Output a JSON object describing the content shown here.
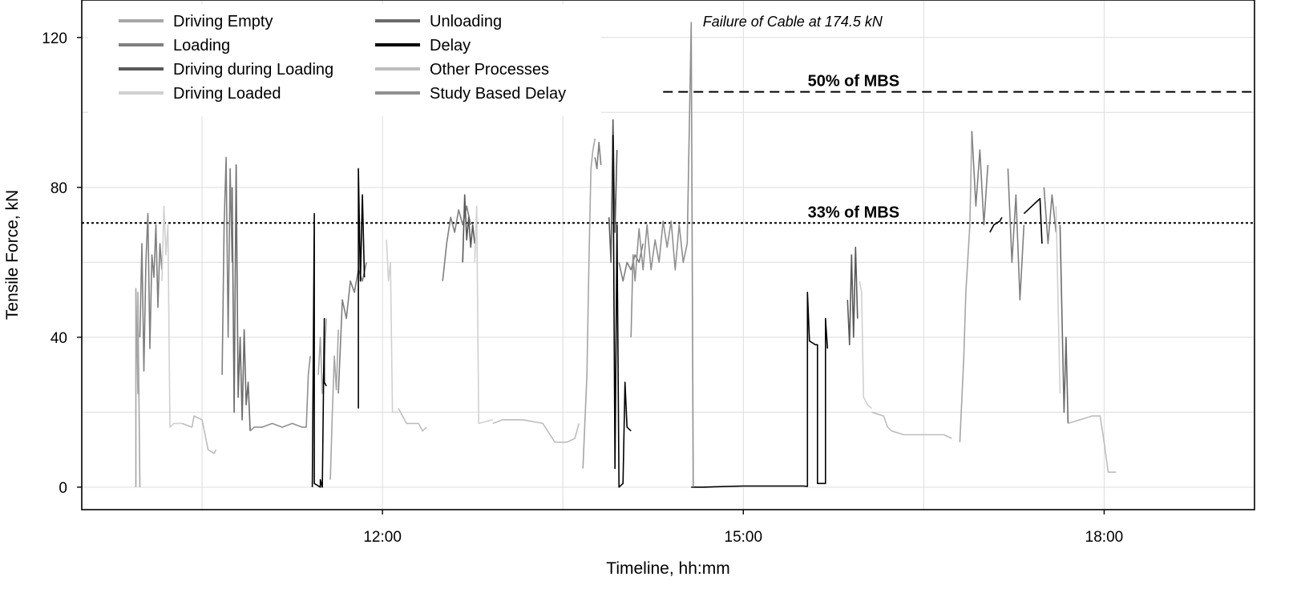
{
  "chart_data": {
    "type": "line",
    "title": "",
    "xlabel": "Timeline, hh:mm",
    "ylabel": "Tensile Force, kN",
    "x_unit": "hh:mm",
    "xlim": [
      "09:30",
      "19:15"
    ],
    "ylim": [
      -6,
      130
    ],
    "x_ticks": [
      "12:00",
      "15:00",
      "18:00"
    ],
    "y_ticks": [
      0,
      40,
      80,
      120
    ],
    "grid": true,
    "legend_position": "top-left",
    "legend": [
      {
        "name": "Driving Empty",
        "color": "#a6a6a6"
      },
      {
        "name": "Loading",
        "color": "#7f7f7f"
      },
      {
        "name": "Driving during Loading",
        "color": "#595959"
      },
      {
        "name": "Driving Loaded",
        "color": "#d0d0d0"
      },
      {
        "name": "Unloading",
        "color": "#6b6b6b"
      },
      {
        "name": "Delay",
        "color": "#000000"
      },
      {
        "name": "Other Processes",
        "color": "#bdbdbd"
      },
      {
        "name": "Study Based Delay",
        "color": "#909090"
      }
    ],
    "reference_lines": [
      {
        "y": 105.5,
        "label": "50% of MBS",
        "style": "dashed"
      },
      {
        "y": 70.5,
        "label": "33% of MBS",
        "style": "dotted"
      }
    ],
    "annotations": [
      {
        "x": "14:35",
        "y": 124,
        "text": "Failure of Cable at 174.5 kN"
      }
    ],
    "series": [
      {
        "name": "Driving Empty",
        "segments": [
          [
            [
              "09:57",
              0
            ],
            [
              "09:57",
              53
            ],
            [
              "09:58",
              25
            ],
            [
              "09:58",
              52
            ],
            [
              "09:59",
              0
            ]
          ],
          [
            [
              "11:28",
              30
            ],
            [
              "11:29",
              40
            ],
            [
              "11:30",
              25
            ],
            [
              "11:31",
              34
            ],
            [
              "11:32",
              45
            ]
          ],
          [
            [
              "11:34",
              2
            ],
            [
              "11:35",
              20
            ],
            [
              "11:36",
              35
            ],
            [
              "11:37",
              26
            ],
            [
              "11:38",
              42
            ]
          ],
          [
            [
              "13:40",
              5
            ],
            [
              "13:42",
              30
            ],
            [
              "13:43",
              60
            ],
            [
              "13:44",
              85
            ],
            [
              "13:45",
              90
            ],
            [
              "13:46",
              93
            ]
          ],
          [
            [
              "16:48",
              12
            ],
            [
              "16:50",
              35
            ],
            [
              "16:51",
              52
            ],
            [
              "16:53",
              70
            ],
            [
              "16:54",
              95
            ]
          ]
        ]
      },
      {
        "name": "Loading",
        "segments": [
          [
            [
              "09:59",
              40
            ],
            [
              "10:00",
              65
            ],
            [
              "10:01",
              31
            ],
            [
              "10:02",
              60
            ],
            [
              "10:03",
              73
            ],
            [
              "10:04",
              37
            ],
            [
              "10:05",
              62
            ],
            [
              "10:06",
              56
            ],
            [
              "10:07",
              70
            ],
            [
              "10:08",
              48
            ],
            [
              "10:09",
              65
            ],
            [
              "10:10",
              58
            ]
          ],
          [
            [
              "10:40",
              30
            ],
            [
              "10:41",
              70
            ],
            [
              "10:42",
              88
            ],
            [
              "10:43",
              40
            ],
            [
              "10:44",
              85
            ],
            [
              "10:45",
              60
            ]
          ],
          [
            [
              "11:38",
              25
            ],
            [
              "11:40",
              50
            ],
            [
              "11:42",
              45
            ],
            [
              "11:44",
              55
            ],
            [
              "11:46",
              52
            ],
            [
              "11:48",
              58
            ],
            [
              "11:50",
              55
            ],
            [
              "11:52",
              60
            ]
          ],
          [
            [
              "12:30",
              55
            ],
            [
              "12:32",
              65
            ],
            [
              "12:34",
              72
            ],
            [
              "12:36",
              68
            ],
            [
              "12:38",
              74
            ],
            [
              "12:40",
              70
            ],
            [
              "12:42",
              75
            ],
            [
              "12:44",
              70
            ]
          ],
          [
            [
              "13:46",
              88
            ],
            [
              "13:47",
              85
            ],
            [
              "13:48",
              92
            ],
            [
              "13:49",
              86
            ]
          ],
          [
            [
              "13:58",
              60
            ],
            [
              "14:00",
              55
            ],
            [
              "14:02",
              60
            ],
            [
              "14:04",
              58
            ],
            [
              "14:06",
              62
            ],
            [
              "14:08",
              60
            ],
            [
              "14:10",
              65
            ]
          ],
          [
            [
              "16:54",
              95
            ],
            [
              "16:56",
              75
            ],
            [
              "16:58",
              90
            ],
            [
              "17:00",
              70
            ],
            [
              "17:02",
              86
            ]
          ],
          [
            [
              "17:12",
              85
            ],
            [
              "17:14",
              60
            ],
            [
              "17:16",
              78
            ],
            [
              "17:18",
              50
            ],
            [
              "17:20",
              70
            ]
          ],
          [
            [
              "17:30",
              80
            ],
            [
              "17:32",
              65
            ],
            [
              "17:34",
              78
            ],
            [
              "17:36",
              68
            ]
          ]
        ]
      },
      {
        "name": "Driving during Loading",
        "segments": [
          [
            [
              "12:40",
              60
            ],
            [
              "12:41",
              78
            ],
            [
              "12:42",
              66
            ],
            [
              "12:43",
              72
            ],
            [
              "12:44",
              64
            ],
            [
              "12:45",
              70
            ],
            [
              "12:46",
              65
            ]
          ],
          [
            [
              "13:53",
              72
            ],
            [
              "13:54",
              60
            ],
            [
              "13:55",
              98
            ],
            [
              "13:56",
              68
            ],
            [
              "13:57",
              90
            ]
          ],
          [
            [
              "15:52",
              50
            ],
            [
              "15:53",
              38
            ],
            [
              "15:54",
              62
            ],
            [
              "15:55",
              40
            ],
            [
              "15:56",
              64
            ],
            [
              "15:57",
              45
            ]
          ]
        ]
      },
      {
        "name": "Driving Loaded",
        "segments": [
          [
            [
              "10:10",
              55
            ],
            [
              "10:11",
              75
            ],
            [
              "10:12",
              62
            ],
            [
              "10:13",
              70
            ],
            [
              "10:14",
              16
            ],
            [
              "10:16",
              17
            ],
            [
              "10:20",
              17
            ]
          ],
          [
            [
              "12:02",
              66
            ],
            [
              "12:03",
              55
            ],
            [
              "12:04",
              60
            ],
            [
              "12:05",
              20
            ],
            [
              "12:08",
              20
            ]
          ],
          [
            [
              "12:46",
              60
            ],
            [
              "12:47",
              75
            ],
            [
              "12:48",
              17
            ],
            [
              "12:55",
              18
            ]
          ],
          [
            [
              "15:58",
              55
            ],
            [
              "15:59",
              52
            ],
            [
              "16:00",
              24
            ],
            [
              "16:02",
              22
            ],
            [
              "16:04",
              21
            ]
          ],
          [
            [
              "17:36",
              75
            ],
            [
              "17:38",
              25
            ]
          ]
        ]
      },
      {
        "name": "Unloading",
        "segments": [
          [
            [
              "10:45",
              80
            ],
            [
              "10:46",
              20
            ],
            [
              "10:47",
              86
            ],
            [
              "10:48",
              24
            ],
            [
              "10:49",
              40
            ],
            [
              "10:50",
              18
            ],
            [
              "10:51",
              42
            ],
            [
              "10:52",
              22
            ],
            [
              "10:53",
              28
            ],
            [
              "10:54",
              15
            ]
          ],
          [
            [
              "17:38",
              70
            ],
            [
              "17:40",
              20
            ],
            [
              "17:41",
              40
            ],
            [
              "17:42",
              17
            ]
          ]
        ]
      },
      {
        "name": "Delay",
        "segments": [
          [
            [
              "11:25",
              0
            ],
            [
              "11:26",
              73
            ],
            [
              "11:26",
              1
            ],
            [
              "11:29",
              0
            ],
            [
              "11:29",
              2
            ],
            [
              "11:30",
              0
            ],
            [
              "11:31",
              45
            ],
            [
              "11:31",
              28
            ],
            [
              "11:32",
              27
            ]
          ],
          [
            [
              "11:48",
              21
            ],
            [
              "11:48",
              85
            ],
            [
              "11:49",
              55
            ],
            [
              "11:50",
              78
            ],
            [
              "11:51",
              56
            ]
          ],
          [
            [
              "13:55",
              94
            ],
            [
              "13:56",
              5
            ],
            [
              "13:57",
              70
            ],
            [
              "13:58",
              0
            ],
            [
              "14:00",
              1
            ],
            [
              "14:01",
              28
            ],
            [
              "14:02",
              16
            ],
            [
              "14:04",
              15
            ]
          ],
          [
            [
              "14:34",
              0
            ],
            [
              "14:40",
              0
            ],
            [
              "15:00",
              0.3
            ],
            [
              "15:30",
              0.3
            ],
            [
              "15:32",
              0.2
            ],
            [
              "15:32",
              52
            ],
            [
              "15:33",
              39
            ],
            [
              "15:36",
              38
            ],
            [
              "15:37",
              38
            ],
            [
              "15:37",
              1
            ],
            [
              "15:41",
              1
            ],
            [
              "15:41",
              45
            ],
            [
              "15:42",
              37
            ]
          ],
          [
            [
              "17:03",
              68
            ],
            [
              "17:05",
              70
            ],
            [
              "17:08",
              71
            ],
            [
              "17:09",
              72
            ]
          ],
          [
            [
              "17:20",
              73
            ],
            [
              "17:24",
              75
            ],
            [
              "17:26",
              76
            ],
            [
              "17:28",
              77
            ],
            [
              "17:29",
              65
            ]
          ]
        ]
      },
      {
        "name": "Other Processes",
        "segments": [
          [
            [
              "10:20",
              17
            ],
            [
              "10:25",
              16
            ],
            [
              "10:26",
              19
            ],
            [
              "10:30",
              18
            ],
            [
              "10:33",
              10
            ],
            [
              "10:36",
              9
            ],
            [
              "10:37",
              10
            ]
          ],
          [
            [
              "12:08",
              21
            ],
            [
              "12:12",
              17
            ],
            [
              "12:18",
              17
            ],
            [
              "12:20",
              15
            ],
            [
              "12:22",
              16
            ]
          ],
          [
            [
              "12:55",
              17
            ],
            [
              "13:00",
              18
            ],
            [
              "13:10",
              18
            ],
            [
              "13:20",
              17
            ],
            [
              "13:26",
              12
            ],
            [
              "13:32",
              12
            ],
            [
              "13:36",
              13
            ],
            [
              "13:38",
              17
            ]
          ],
          [
            [
              "16:04",
              20
            ],
            [
              "16:10",
              19
            ],
            [
              "16:12",
              16
            ],
            [
              "16:14",
              15
            ],
            [
              "16:20",
              14
            ],
            [
              "16:40",
              14
            ],
            [
              "16:44",
              13
            ]
          ],
          [
            [
              "17:42",
              17
            ],
            [
              "17:48",
              18
            ],
            [
              "17:54",
              19
            ],
            [
              "17:58",
              19
            ],
            [
              "18:00",
              12
            ],
            [
              "18:02",
              4
            ],
            [
              "18:06",
              4
            ]
          ]
        ]
      },
      {
        "name": "Study Based Delay",
        "segments": [
          [
            [
              "10:54",
              15
            ],
            [
              "10:56",
              16
            ],
            [
              "11:00",
              16
            ],
            [
              "11:05",
              17
            ],
            [
              "11:10",
              16
            ],
            [
              "11:15",
              17
            ],
            [
              "11:20",
              16
            ],
            [
              "11:22",
              16
            ],
            [
              "11:23",
              30
            ],
            [
              "11:24",
              35
            ]
          ],
          [
            [
              "14:04",
              40
            ],
            [
              "14:05",
              62
            ],
            [
              "14:06",
              55
            ],
            [
              "14:08",
              69
            ],
            [
              "14:10",
              58
            ],
            [
              "14:12",
              70
            ],
            [
              "14:14",
              58
            ],
            [
              "14:16",
              66
            ],
            [
              "14:18",
              60
            ],
            [
              "14:20",
              71
            ],
            [
              "14:22",
              64
            ],
            [
              "14:24",
              71
            ],
            [
              "14:26",
              58
            ],
            [
              "14:28",
              70
            ],
            [
              "14:30",
              60
            ],
            [
              "14:32",
              65
            ],
            [
              "14:34",
              124
            ],
            [
              "14:35",
              0
            ]
          ]
        ]
      }
    ]
  }
}
